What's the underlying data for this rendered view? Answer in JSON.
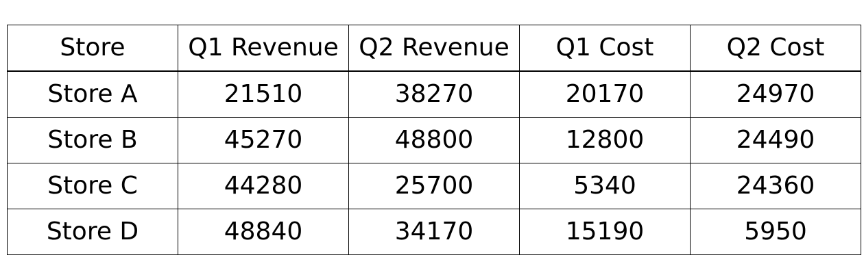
{
  "chart_data": {
    "type": "table",
    "columns": [
      "Store",
      "Q1 Revenue",
      "Q2 Revenue",
      "Q1 Cost",
      "Q2 Cost"
    ],
    "rows": [
      [
        "Store A",
        "21510",
        "38270",
        "20170",
        "24970"
      ],
      [
        "Store B",
        "45270",
        "48800",
        "12800",
        "24490"
      ],
      [
        "Store C",
        "44280",
        "25700",
        "5340",
        "24360"
      ],
      [
        "Store D",
        "48840",
        "34170",
        "15190",
        "5950"
      ]
    ]
  }
}
